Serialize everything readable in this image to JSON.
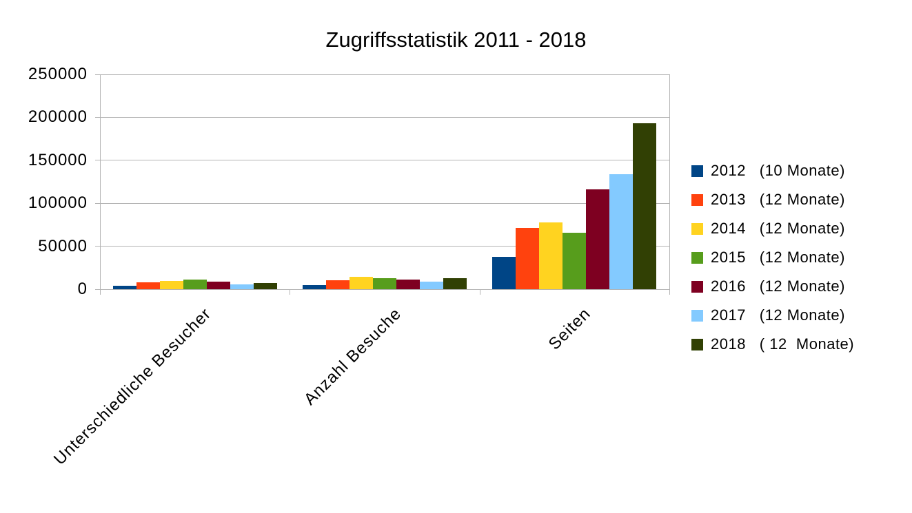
{
  "title": "Zugriffsstatistik 2011 - 2018",
  "colors": {
    "background": "#ffffff",
    "grid": "#b3b3b3",
    "text": "#000000"
  },
  "chart_data": {
    "type": "bar",
    "title": "Zugriffsstatistik 2011 - 2018",
    "categories": [
      "Unterschiedliche Besucher",
      "Anzahl Besuche",
      "Seiten"
    ],
    "series": [
      {
        "name": "2012",
        "label": "2012   (10 Monate)",
        "color": "#004586",
        "values": [
          4000,
          5200,
          37500
        ]
      },
      {
        "name": "2013",
        "label": "2013   (12 Monate)",
        "color": "#FF420E",
        "values": [
          8000,
          10800,
          71000
        ]
      },
      {
        "name": "2014",
        "label": "2014   (12 Monate)",
        "color": "#FFD320",
        "values": [
          9600,
          14200,
          77500
        ]
      },
      {
        "name": "2015",
        "label": "2015   (12 Monate)",
        "color": "#579D1C",
        "values": [
          11000,
          13200,
          65500
        ]
      },
      {
        "name": "2016",
        "label": "2016   (12 Monate)",
        "color": "#7E0021",
        "values": [
          9200,
          11600,
          116000
        ]
      },
      {
        "name": "2017",
        "label": "2017   (12 Monate)",
        "color": "#83CAFF",
        "values": [
          6000,
          8800,
          134000
        ]
      },
      {
        "name": "2018",
        "label": "2018   ( 12  Monate)",
        "color": "#314004",
        "values": [
          7000,
          12500,
          193000
        ]
      }
    ],
    "y_axis": {
      "min": 0,
      "max": 250000,
      "step": 50000,
      "tick_labels": [
        "0",
        "50000",
        "100000",
        "150000",
        "200000",
        "250000"
      ]
    },
    "grid": true,
    "legend_position": "right"
  }
}
